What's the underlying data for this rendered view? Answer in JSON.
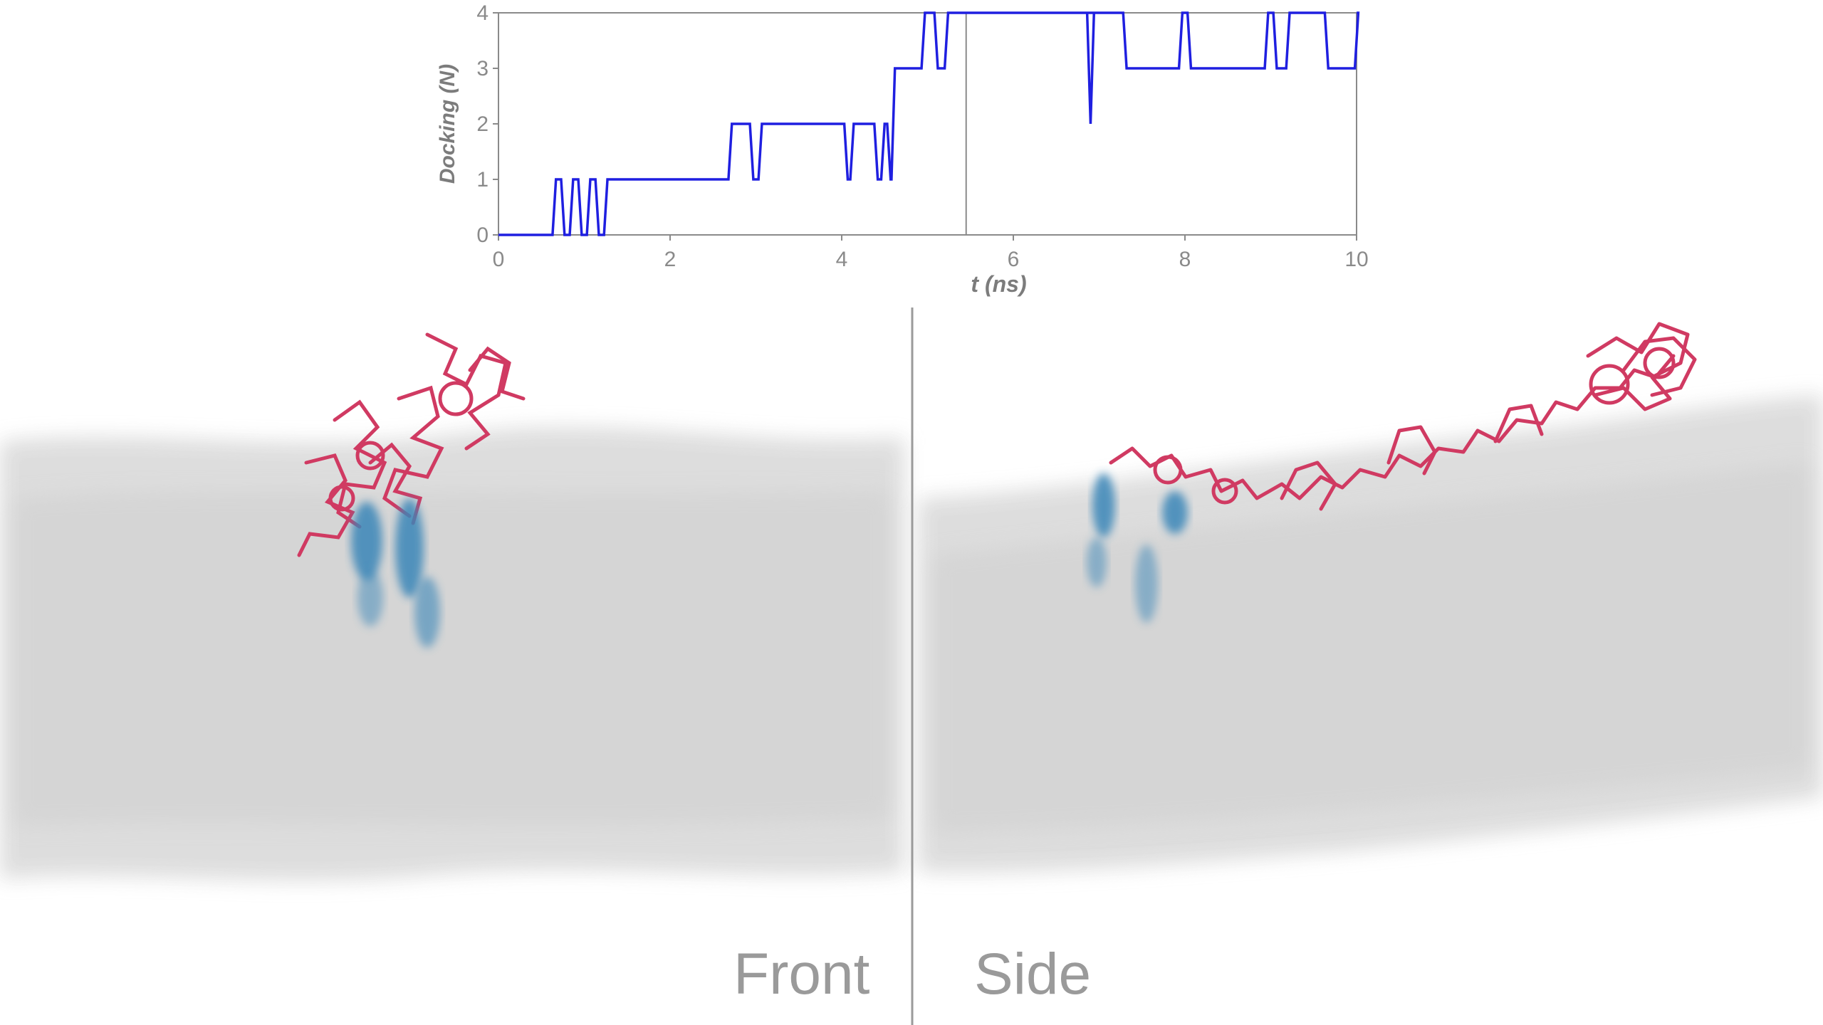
{
  "views": {
    "front_label": "Front",
    "side_label": "Side"
  },
  "colors": {
    "series_line": "#1f1fe0",
    "axis": "#8a8a8a",
    "membrane": "#d9d9d9",
    "peptide": "#d03a62",
    "lipid_marker": "#3b86b8",
    "divider": "#9a9a9a"
  },
  "chart_data": {
    "type": "line",
    "title": "",
    "xlabel": "t (ns)",
    "ylabel": "Docking (N)",
    "xlim": [
      0,
      10
    ],
    "ylim": [
      0,
      4
    ],
    "xticks": [
      0,
      2,
      4,
      6,
      8,
      10
    ],
    "yticks": [
      0,
      1,
      2,
      3,
      4
    ],
    "grid": false,
    "legend": "none",
    "current_time_marker": 5.45,
    "series": [
      {
        "step": true,
        "x": [
          0,
          0.65,
          0.75,
          0.85,
          0.95,
          1.05,
          1.15,
          1.25,
          2.7,
          2.95,
          3.05,
          4.05,
          4.12,
          4.4,
          4.48,
          4.55,
          4.6,
          4.95,
          5.1,
          5.22,
          6.95,
          7.3,
          7.95,
          8.05,
          8.95,
          9.05,
          9.2,
          9.65,
          10
        ],
        "y": [
          0,
          1,
          0,
          1,
          0,
          1,
          0,
          1,
          2,
          1,
          2,
          1,
          2,
          1,
          2,
          1,
          3,
          4,
          3,
          4,
          4,
          3,
          4,
          3,
          4,
          3,
          4,
          3,
          4
        ]
      }
    ],
    "spikes": [
      {
        "x": 6.9,
        "y": 2
      }
    ]
  }
}
